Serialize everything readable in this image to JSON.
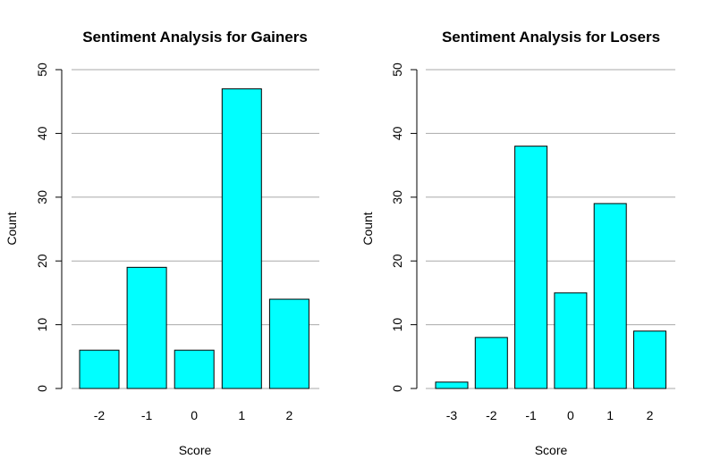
{
  "chart_data": [
    {
      "type": "bar",
      "title": "Sentiment Analysis for Gainers",
      "xlabel": "Score",
      "ylabel": "Count",
      "categories": [
        "-2",
        "-1",
        "0",
        "1",
        "2"
      ],
      "values": [
        6,
        19,
        6,
        47,
        14
      ],
      "ylim": [
        0,
        50
      ],
      "yticks": [
        0,
        10,
        20,
        30,
        40,
        50
      ],
      "grid": true,
      "bar_color": "#00ffff"
    },
    {
      "type": "bar",
      "title": "Sentiment Analysis for Losers",
      "xlabel": "Score",
      "ylabel": "Count",
      "categories": [
        "-3",
        "-2",
        "-1",
        "0",
        "1",
        "2"
      ],
      "values": [
        1,
        8,
        38,
        15,
        29,
        9
      ],
      "ylim": [
        0,
        50
      ],
      "yticks": [
        0,
        10,
        20,
        30,
        40,
        50
      ],
      "grid": true,
      "bar_color": "#00ffff"
    }
  ]
}
